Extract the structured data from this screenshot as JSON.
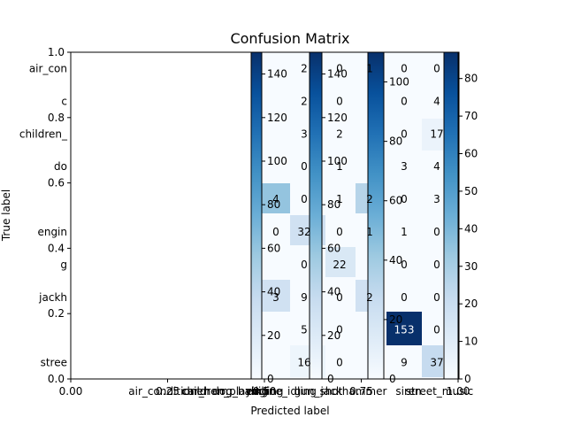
{
  "chart_data": {
    "type": "heatmap",
    "title": "Confusion Matrix",
    "xlabel": "Predicted label",
    "ylabel": "True label",
    "frame_xlim": [
      0,
      1
    ],
    "frame_ylim": [
      0,
      1
    ],
    "frame_x_ticks": [
      "0.00",
      "0.25",
      "0.50",
      "0.75",
      "1.00"
    ],
    "frame_y_ticks": [
      "0.0",
      "0.2",
      "0.4",
      "0.6",
      "0.8",
      "1.0"
    ],
    "classes": [
      "air_conditioner",
      "car_horn",
      "children_playing",
      "dog_bark",
      "drilling",
      "engine_idling",
      "gun_shot",
      "jackhammer",
      "siren",
      "street_music"
    ],
    "class_tick_labels_visible": [
      "air_con",
      "c",
      "children_",
      "do",
      "engin",
      "g",
      "jackh",
      "stree"
    ],
    "visible_cells": [
      {
        "row": 0,
        "col": 5,
        "label": "2"
      },
      {
        "row": 0,
        "col": 6,
        "label": "0"
      },
      {
        "row": 0,
        "col": 7,
        "label": "1"
      },
      {
        "row": 0,
        "col": 8,
        "label": "0"
      },
      {
        "row": 0,
        "col": 9,
        "label": "0"
      },
      {
        "row": 1,
        "col": 5,
        "label": "2"
      },
      {
        "row": 1,
        "col": 6,
        "label": "0"
      },
      {
        "row": 1,
        "col": 8,
        "label": "0"
      },
      {
        "row": 1,
        "col": 9,
        "label": "4"
      },
      {
        "row": 2,
        "col": 5,
        "label": "3"
      },
      {
        "row": 2,
        "col": 6,
        "label": "2"
      },
      {
        "row": 2,
        "col": 8,
        "label": "0"
      },
      {
        "row": 2,
        "col": 9,
        "label": "17"
      },
      {
        "row": 3,
        "col": 5,
        "label": "0"
      },
      {
        "row": 3,
        "col": 6,
        "label": "1"
      },
      {
        "row": 3,
        "col": 8,
        "label": "3"
      },
      {
        "row": 3,
        "col": 9,
        "label": "4"
      },
      {
        "row": 4,
        "col": 4,
        "label": "4"
      },
      {
        "row": 4,
        "col": 5,
        "label": "0"
      },
      {
        "row": 4,
        "col": 6,
        "label": "1"
      },
      {
        "row": 4,
        "col": 7,
        "label": "2"
      },
      {
        "row": 4,
        "col": 8,
        "label": "0"
      },
      {
        "row": 4,
        "col": 9,
        "label": "3"
      },
      {
        "row": 5,
        "col": 4,
        "label": "0"
      },
      {
        "row": 5,
        "col": 5,
        "label": "32"
      },
      {
        "row": 5,
        "col": 6,
        "label": "0"
      },
      {
        "row": 5,
        "col": 7,
        "label": "1"
      },
      {
        "row": 5,
        "col": 8,
        "label": "1"
      },
      {
        "row": 5,
        "col": 9,
        "label": "0"
      },
      {
        "row": 6,
        "col": 5,
        "label": "0"
      },
      {
        "row": 6,
        "col": 6,
        "label": "22"
      },
      {
        "row": 6,
        "col": 8,
        "label": "0"
      },
      {
        "row": 6,
        "col": 9,
        "label": "0"
      },
      {
        "row": 7,
        "col": 4,
        "label": "3"
      },
      {
        "row": 7,
        "col": 5,
        "label": "9"
      },
      {
        "row": 7,
        "col": 6,
        "label": "0"
      },
      {
        "row": 7,
        "col": 7,
        "label": "2"
      },
      {
        "row": 7,
        "col": 8,
        "label": "0"
      },
      {
        "row": 7,
        "col": 9,
        "label": "0"
      },
      {
        "row": 8,
        "col": 5,
        "label": "5"
      },
      {
        "row": 8,
        "col": 6,
        "label": "0"
      },
      {
        "row": 8,
        "col": 8,
        "label": "153"
      },
      {
        "row": 8,
        "col": 9,
        "label": "0"
      },
      {
        "row": 9,
        "col": 5,
        "label": "16"
      },
      {
        "row": 9,
        "col": 6,
        "label": "0"
      },
      {
        "row": 9,
        "col": 8,
        "label": "9"
      },
      {
        "row": 9,
        "col": 9,
        "label": "37"
      }
    ],
    "cell_color_levels": [
      {
        "row": 3,
        "col": 3,
        "level": 0.35
      },
      {
        "row": 4,
        "col": 4,
        "level": 0.3
      },
      {
        "row": 4,
        "col": 7,
        "level": 0.3
      },
      {
        "row": 5,
        "col": 5,
        "level": 0.2
      },
      {
        "row": 6,
        "col": 6,
        "level": 0.15
      },
      {
        "row": 7,
        "col": 4,
        "level": 0.2
      },
      {
        "row": 7,
        "col": 7,
        "level": 0.2
      },
      {
        "row": 8,
        "col": 8,
        "level": 1.0
      },
      {
        "row": 9,
        "col": 9,
        "level": 0.25
      }
    ],
    "colorbars": [
      {
        "vmax": 150,
        "ticks": [
          "0",
          "20",
          "40",
          "60",
          "80",
          "100",
          "120",
          "140"
        ],
        "tick_values": [
          0,
          20,
          40,
          60,
          80,
          100,
          120,
          140
        ]
      },
      {
        "vmax": 150,
        "ticks": [
          "0",
          "20",
          "40",
          "60",
          "80",
          "100",
          "120",
          "140"
        ],
        "tick_values": [
          0,
          20,
          40,
          60,
          80,
          100,
          120,
          140
        ]
      },
      {
        "vmax": 110,
        "ticks": [
          "0",
          "20",
          "40",
          "60",
          "80",
          "100"
        ],
        "tick_values": [
          0,
          20,
          40,
          60,
          80,
          100
        ]
      },
      {
        "vmax": 87,
        "ticks": [
          "0",
          "10",
          "20",
          "30",
          "40",
          "50",
          "60",
          "70",
          "80"
        ],
        "tick_values": [
          0,
          10,
          20,
          30,
          40,
          50,
          60,
          70,
          80
        ]
      }
    ],
    "overlapping_x_labels": "air_conditioner car_horn children_playing dog_bark drilling engine_idling gun_shot jackhammer siren street_music",
    "colormap": [
      "#f7fbff",
      "#deebf7",
      "#c6dbef",
      "#9ecae1",
      "#6baed6",
      "#4292c6",
      "#2171b5",
      "#08519c",
      "#08306b"
    ]
  }
}
